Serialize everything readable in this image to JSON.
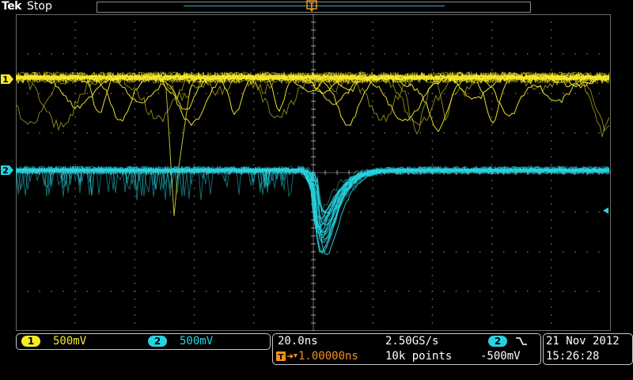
{
  "header": {
    "brand": "Tek",
    "run_state": "Stop"
  },
  "channels": [
    {
      "number": "1",
      "scale": "500mV",
      "color": "#f5ea2a"
    },
    {
      "number": "2",
      "scale": "500mV",
      "color": "#27d3e0"
    }
  ],
  "horizontal": {
    "scale": "20.0ns",
    "trigger_icon_label": "T",
    "trigger_delay": "1.00000ns",
    "sample_rate": "2.50GS/s",
    "record_length": "10k points",
    "trigger_source": "2",
    "trigger_slope_icon": "falling-edge-icon",
    "trigger_level": "-500mV"
  },
  "datetime": {
    "date": "21 Nov 2012",
    "time": "15:26:28"
  },
  "colors": {
    "trigger": "#f0911e",
    "graticule": "#6a6a6a",
    "background": "#000000"
  }
}
